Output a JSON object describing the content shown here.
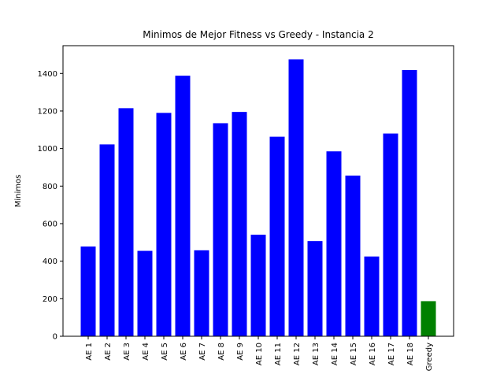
{
  "chart_data": {
    "type": "bar",
    "title": "Minimos de Mejor Fitness vs Greedy - Instancia 2",
    "xlabel": "",
    "ylabel": "Minimos",
    "categories": [
      "AE 1",
      "AE 2",
      "AE 3",
      "AE 4",
      "AE 5",
      "AE 6",
      "AE 7",
      "AE 8",
      "AE 9",
      "AE 10",
      "AE 11",
      "AE 12",
      "AE 13",
      "AE 14",
      "AE 15",
      "AE 16",
      "AE 17",
      "AE 18",
      "Greedy"
    ],
    "values": [
      478,
      1022,
      1215,
      455,
      1190,
      1388,
      458,
      1135,
      1195,
      541,
      1063,
      1475,
      507,
      985,
      856,
      425,
      1080,
      1418,
      187
    ],
    "colors": [
      "#0000ff",
      "#0000ff",
      "#0000ff",
      "#0000ff",
      "#0000ff",
      "#0000ff",
      "#0000ff",
      "#0000ff",
      "#0000ff",
      "#0000ff",
      "#0000ff",
      "#0000ff",
      "#0000ff",
      "#0000ff",
      "#0000ff",
      "#0000ff",
      "#0000ff",
      "#0000ff",
      "#008000"
    ],
    "yticks": [
      0,
      200,
      400,
      600,
      800,
      1000,
      1200,
      1400
    ],
    "ylim": [
      0,
      1548
    ],
    "grid": false,
    "legend": "none"
  }
}
